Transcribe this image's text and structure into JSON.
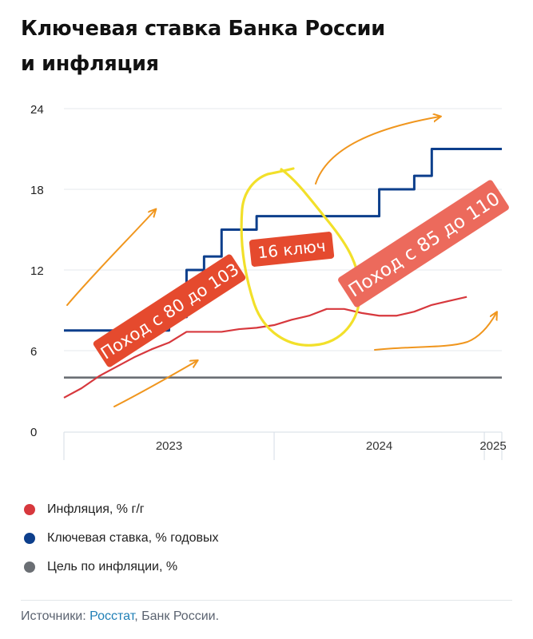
{
  "title": {
    "line1": "Ключевая ставка Банка России",
    "line2": "и инфляция"
  },
  "colors": {
    "inflation": "#d7383d",
    "key_rate": "#0d3f8c",
    "target": "#6b6f74",
    "annotation_bg": "#e54a2e",
    "annotation_bg_light": "#ec6a5c",
    "arrow": "#f0961e",
    "highlight": "#f2e02a"
  },
  "legend": [
    {
      "label": "Инфляция, % г/г",
      "color": "#d7383d"
    },
    {
      "label": "Ключевая ставка, % годовых",
      "color": "#0d3f8c"
    },
    {
      "label": "Цель по инфляции, %",
      "color": "#6b6f74"
    }
  ],
  "source": {
    "prefix": "Источники: ",
    "link": "Росстат",
    "suffix": ", Банк России."
  },
  "annotations": {
    "left": "Поход с 80 до 103",
    "middle": "16 ключ",
    "right": "Поход с 85 до 110"
  },
  "chart_data": {
    "type": "line",
    "ylim": [
      0,
      24
    ],
    "yticks": [
      "0",
      "6",
      "12",
      "18",
      "24"
    ],
    "grid": true,
    "x_axis_labels": [
      "2023",
      "2024",
      "2025"
    ],
    "x_range": [
      "2023-01",
      "2025-02"
    ],
    "series": [
      {
        "name": "Ключевая ставка, % годовых",
        "type": "step",
        "x": [
          "2023-01",
          "2023-07",
          "2023-08",
          "2023-09",
          "2023-10",
          "2023-11",
          "2023-12",
          "2024-07",
          "2024-09",
          "2024-10",
          "2024-11",
          "2025-02"
        ],
        "values": [
          7.5,
          8.5,
          12,
          13,
          15,
          15,
          16,
          18,
          19,
          21,
          21,
          21
        ]
      },
      {
        "name": "Инфляция, % г/г",
        "x": [
          "2023-01",
          "2023-02",
          "2023-03",
          "2023-04",
          "2023-05",
          "2023-06",
          "2023-07",
          "2023-08",
          "2023-09",
          "2023-10",
          "2023-11",
          "2023-12",
          "2024-01",
          "2024-02",
          "2024-03",
          "2024-04",
          "2024-05",
          "2024-06",
          "2024-07",
          "2024-08",
          "2024-09",
          "2024-10",
          "2024-11",
          "2024-12"
        ],
        "values": [
          2.5,
          3.2,
          4.1,
          4.8,
          5.5,
          6.1,
          6.6,
          7.4,
          7.4,
          7.4,
          7.6,
          7.7,
          7.9,
          8.3,
          8.6,
          9.1,
          9.1,
          8.8,
          8.6,
          8.6,
          8.9,
          9.4,
          9.7,
          10.0
        ]
      },
      {
        "name": "Цель по инфляции, %",
        "x": [
          "2023-01",
          "2025-02"
        ],
        "values": [
          4,
          4
        ]
      }
    ]
  }
}
